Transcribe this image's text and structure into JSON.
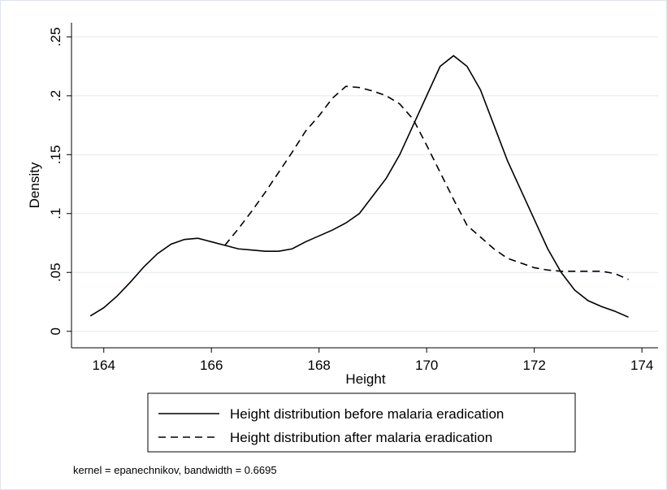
{
  "chart_data": {
    "type": "line",
    "xlabel": "Height",
    "ylabel": "Density",
    "note": "kernel = epanechnikov, bandwidth = 0.6695",
    "x": [
      163.75,
      164,
      164.25,
      164.5,
      164.75,
      165,
      165.25,
      165.5,
      165.75,
      166,
      166.25,
      166.5,
      166.75,
      167,
      167.25,
      167.5,
      167.75,
      168,
      168.25,
      168.5,
      168.75,
      169,
      169.25,
      169.5,
      169.75,
      170,
      170.25,
      170.5,
      170.75,
      171,
      171.25,
      171.5,
      171.75,
      172,
      172.25,
      172.5,
      172.75,
      173,
      173.25,
      173.5,
      173.75
    ],
    "series": [
      {
        "name": "Height distribution before malaria eradication",
        "color": "#000000",
        "dash": "solid",
        "values": [
          0.013,
          0.02,
          0.03,
          0.042,
          0.055,
          0.066,
          0.074,
          0.078,
          0.079,
          0.076,
          0.073,
          0.07,
          0.069,
          0.068,
          0.068,
          0.07,
          0.076,
          0.081,
          0.086,
          0.092,
          0.1,
          0.115,
          0.13,
          0.15,
          0.175,
          0.2,
          0.225,
          0.234,
          0.225,
          0.205,
          0.175,
          0.145,
          0.12,
          0.095,
          0.07,
          0.05,
          0.035,
          0.026,
          0.021,
          0.017,
          0.012
        ]
      },
      {
        "name": "Height distribution after malaria eradication",
        "color": "#000000",
        "dash": "dashed",
        "values": [
          null,
          null,
          null,
          null,
          null,
          null,
          null,
          null,
          null,
          null,
          0.073,
          0.087,
          0.102,
          0.118,
          0.135,
          0.152,
          0.17,
          0.183,
          0.198,
          0.208,
          0.207,
          0.204,
          0.2,
          0.193,
          0.18,
          0.158,
          0.135,
          0.112,
          0.09,
          0.08,
          0.07,
          0.062,
          0.058,
          0.054,
          0.052,
          0.051,
          0.051,
          0.051,
          0.051,
          0.049,
          0.044
        ]
      }
    ],
    "xlim": [
      163.4,
      174.3
    ],
    "xticks": [
      164,
      166,
      168,
      170,
      172,
      174
    ],
    "ylim": [
      -0.014,
      0.262
    ],
    "yticks": [
      0,
      {
        "value": 0.05,
        "label": ".05"
      },
      {
        "value": 0.1,
        "label": ".1"
      },
      {
        "value": 0.15,
        "label": ".15"
      },
      {
        "value": 0.2,
        "label": ".2"
      },
      {
        "value": 0.25,
        "label": ".25"
      }
    ],
    "grid": true
  }
}
